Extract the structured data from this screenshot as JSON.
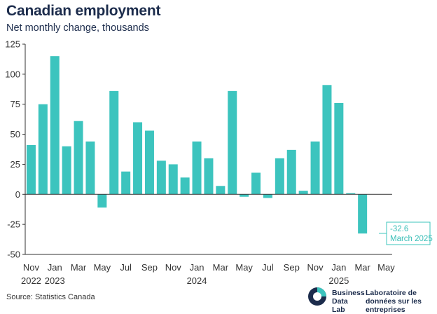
{
  "chart_data": {
    "type": "bar",
    "title": "Canadian employment",
    "subtitle": "Net monthly change, thousands",
    "categories": [
      "Nov 2022",
      "Dec 2022",
      "Jan 2023",
      "Feb 2023",
      "Mar 2023",
      "Apr 2023",
      "May 2023",
      "Jun 2023",
      "Jul 2023",
      "Aug 2023",
      "Sep 2023",
      "Oct 2023",
      "Nov 2023",
      "Dec 2023",
      "Jan 2024",
      "Feb 2024",
      "Mar 2024",
      "Apr 2024",
      "May 2024",
      "Jun 2024",
      "Jul 2024",
      "Aug 2024",
      "Sep 2024",
      "Oct 2024",
      "Nov 2024",
      "Dec 2024",
      "Jan 2025",
      "Feb 2025",
      "Mar 2025",
      "Apr 2025",
      "May 2025"
    ],
    "values": [
      41,
      75,
      115,
      40,
      61,
      44,
      -11,
      86,
      19,
      60,
      53,
      28,
      25,
      14,
      44,
      30,
      7,
      86,
      -2,
      18,
      -3,
      30,
      37,
      3,
      44,
      91,
      76,
      1,
      -32.6,
      null,
      null
    ],
    "ylim": [
      -50,
      125
    ],
    "yticks": [
      -50,
      -25,
      0,
      25,
      50,
      75,
      100,
      125
    ],
    "xtick_months": [
      "Nov",
      "Jan",
      "Mar",
      "May",
      "Jul",
      "Sep",
      "Nov",
      "Jan",
      "Mar",
      "May",
      "Jul",
      "Sep",
      "Nov",
      "Jan",
      "Mar",
      "May"
    ],
    "xtick_years": [
      "2022",
      "2023",
      "2024",
      "2025"
    ],
    "bar_color": "#3cc4be",
    "annotation": {
      "value": "-32.6",
      "label": "March 2025"
    },
    "xlabel": "",
    "ylabel": ""
  },
  "footer": {
    "source": "Source: Statistics Canada",
    "brand_en": "Business Data Lab",
    "brand_fr": "Laboratoire de données sur les entreprises"
  }
}
